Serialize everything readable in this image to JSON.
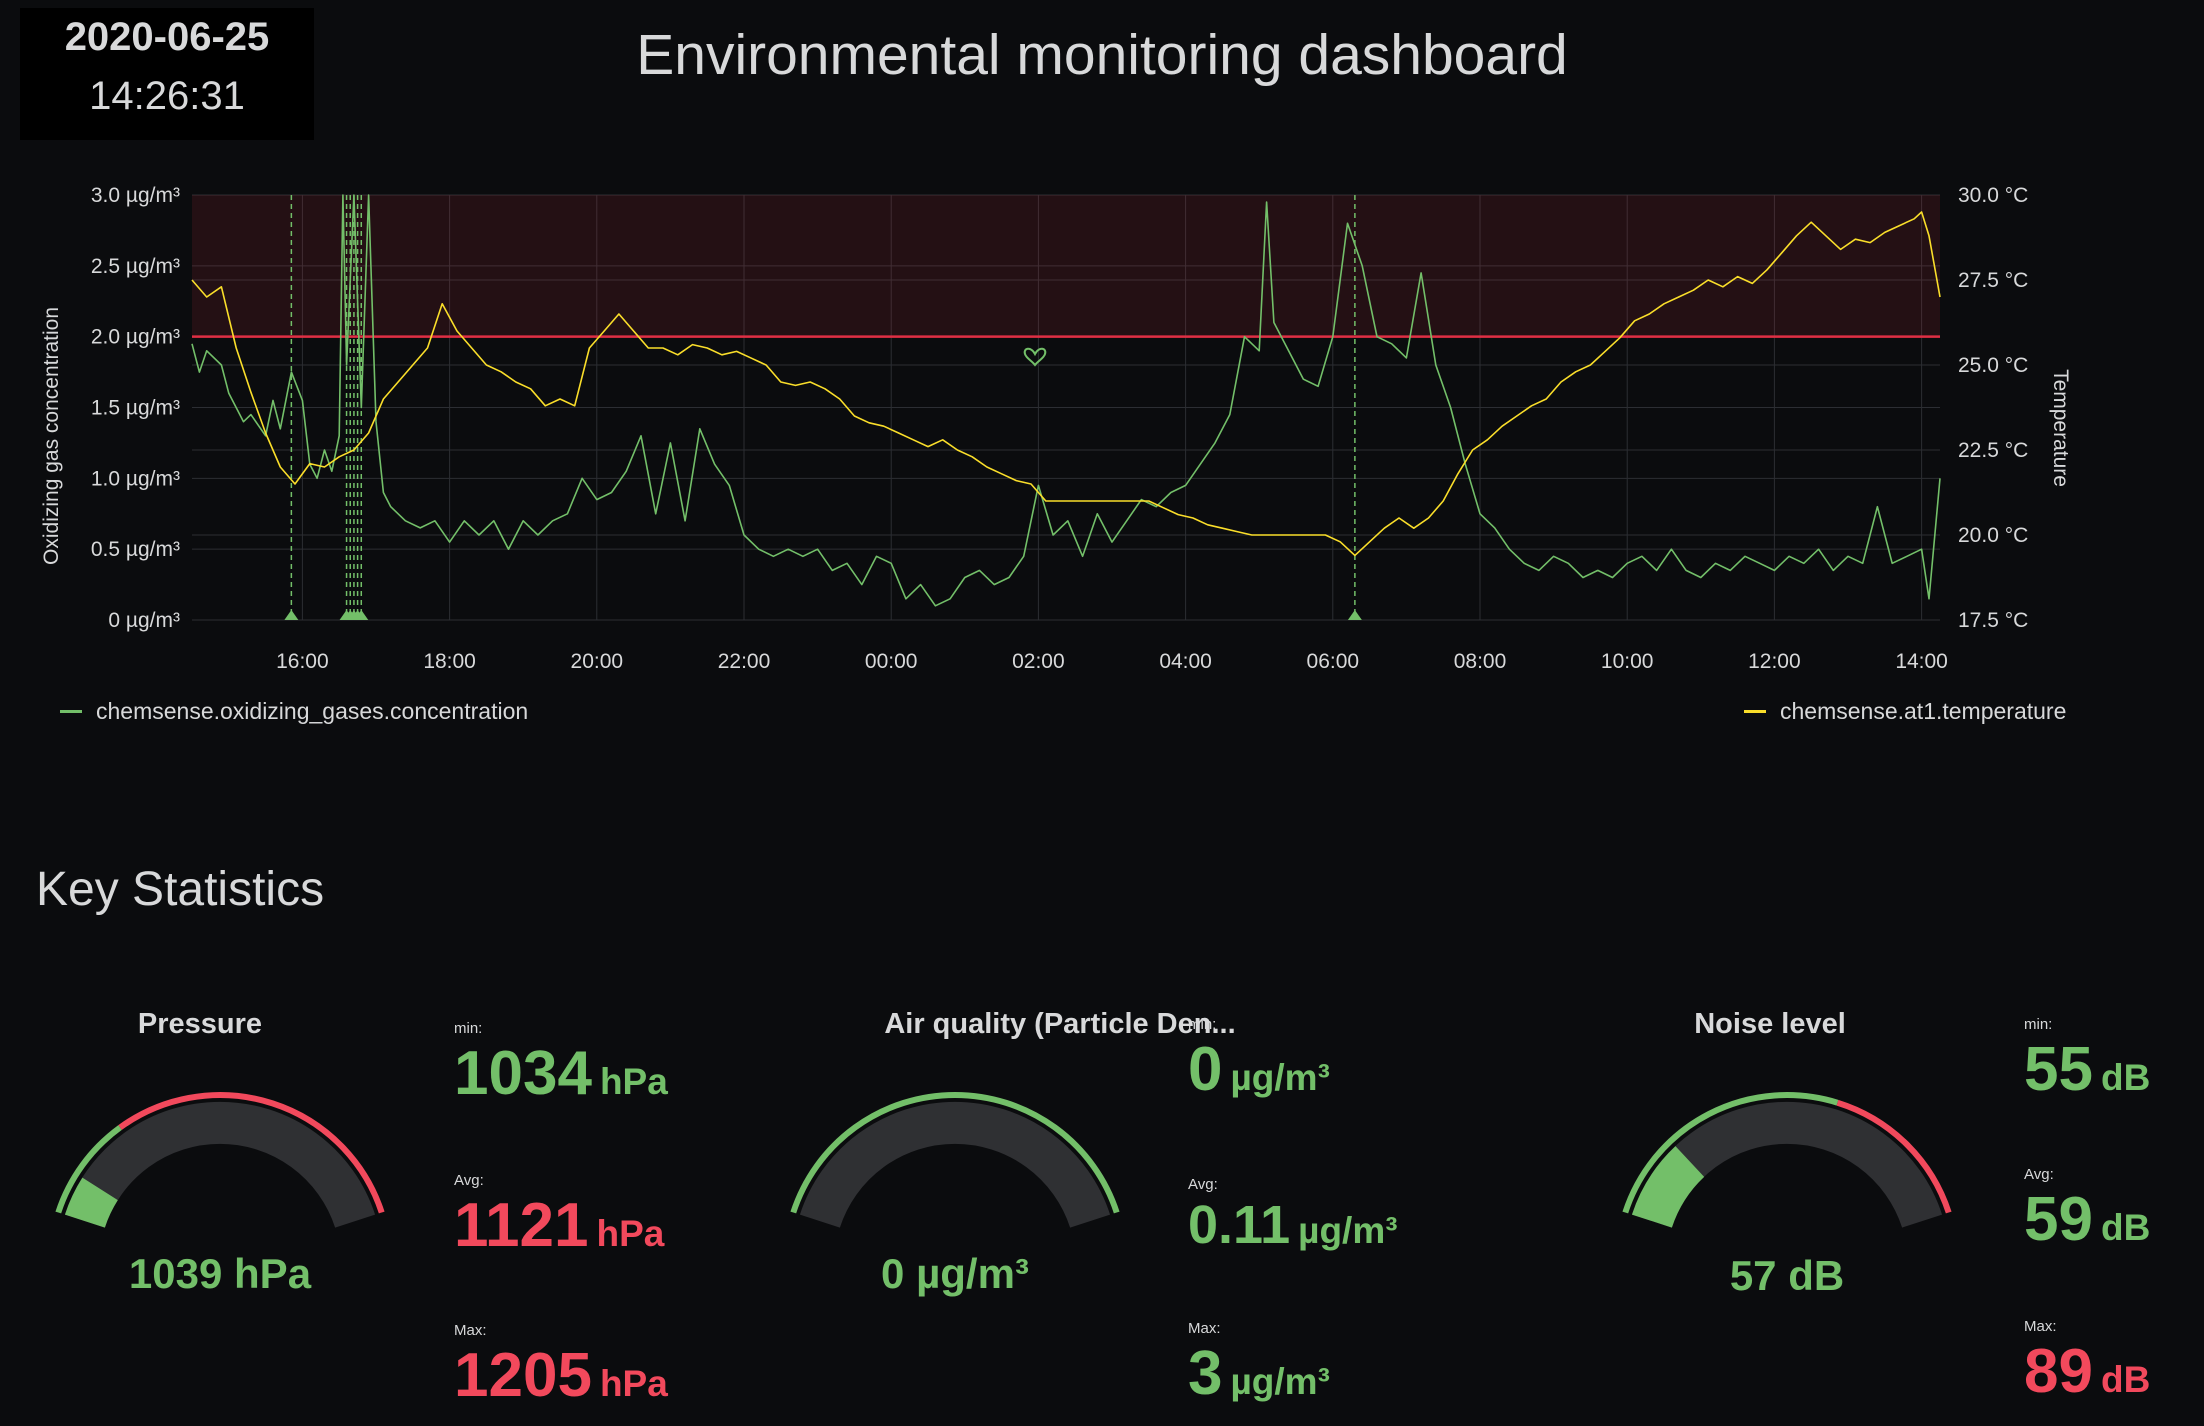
{
  "clock": {
    "date": "2020-06-25",
    "time": "14:26:31"
  },
  "title": "Environmental monitoring dashboard",
  "chart_data": {
    "type": "line",
    "x_ticks": [
      "16:00",
      "18:00",
      "20:00",
      "22:00",
      "00:00",
      "02:00",
      "04:00",
      "06:00",
      "08:00",
      "10:00",
      "12:00",
      "14:00"
    ],
    "y_left": {
      "label": "Oxidizing gas concentration",
      "ticks": [
        "0 µg/m³",
        "0.5 µg/m³",
        "1.0 µg/m³",
        "1.5 µg/m³",
        "2.0 µg/m³",
        "2.5 µg/m³",
        "3.0 µg/m³"
      ],
      "range": [
        0,
        3
      ]
    },
    "y_right": {
      "label": "Temperature",
      "ticks": [
        "17.5 °C",
        "20.0 °C",
        "22.5 °C",
        "25.0 °C",
        "27.5 °C",
        "30.0 °C"
      ],
      "range": [
        17.5,
        30
      ]
    },
    "threshold": {
      "value": 2.0,
      "color": "#e02f44"
    },
    "x_range_hours": [
      14.5,
      38.25
    ],
    "annotations_hours": [
      15.85,
      16.6,
      16.65,
      16.7,
      16.75,
      16.8,
      30.3
    ],
    "series": [
      {
        "name": "chemsense.oxidizing_gases.concentration",
        "color": "#73bf69",
        "axis": "left",
        "points": [
          [
            14.5,
            1.95
          ],
          [
            14.6,
            1.75
          ],
          [
            14.7,
            1.9
          ],
          [
            14.9,
            1.8
          ],
          [
            15.0,
            1.6
          ],
          [
            15.2,
            1.4
          ],
          [
            15.3,
            1.45
          ],
          [
            15.5,
            1.3
          ],
          [
            15.6,
            1.55
          ],
          [
            15.7,
            1.35
          ],
          [
            15.85,
            1.75
          ],
          [
            16.0,
            1.55
          ],
          [
            16.1,
            1.1
          ],
          [
            16.2,
            1.0
          ],
          [
            16.3,
            1.2
          ],
          [
            16.4,
            1.05
          ],
          [
            16.5,
            1.3
          ],
          [
            16.55,
            3.0
          ],
          [
            16.6,
            1.8
          ],
          [
            16.7,
            3.0
          ],
          [
            16.8,
            1.5
          ],
          [
            16.9,
            3.0
          ],
          [
            17.0,
            1.4
          ],
          [
            17.1,
            0.9
          ],
          [
            17.2,
            0.8
          ],
          [
            17.4,
            0.7
          ],
          [
            17.6,
            0.65
          ],
          [
            17.8,
            0.7
          ],
          [
            18.0,
            0.55
          ],
          [
            18.2,
            0.7
          ],
          [
            18.4,
            0.6
          ],
          [
            18.6,
            0.7
          ],
          [
            18.8,
            0.5
          ],
          [
            19.0,
            0.7
          ],
          [
            19.2,
            0.6
          ],
          [
            19.4,
            0.7
          ],
          [
            19.6,
            0.75
          ],
          [
            19.8,
            1.0
          ],
          [
            20.0,
            0.85
          ],
          [
            20.2,
            0.9
          ],
          [
            20.4,
            1.05
          ],
          [
            20.6,
            1.3
          ],
          [
            20.8,
            0.75
          ],
          [
            21.0,
            1.25
          ],
          [
            21.2,
            0.7
          ],
          [
            21.4,
            1.35
          ],
          [
            21.6,
            1.1
          ],
          [
            21.8,
            0.95
          ],
          [
            22.0,
            0.6
          ],
          [
            22.2,
            0.5
          ],
          [
            22.4,
            0.45
          ],
          [
            22.6,
            0.5
          ],
          [
            22.8,
            0.45
          ],
          [
            23.0,
            0.5
          ],
          [
            23.2,
            0.35
          ],
          [
            23.4,
            0.4
          ],
          [
            23.6,
            0.25
          ],
          [
            23.8,
            0.45
          ],
          [
            24.0,
            0.4
          ],
          [
            24.2,
            0.15
          ],
          [
            24.4,
            0.25
          ],
          [
            24.6,
            0.1
          ],
          [
            24.8,
            0.15
          ],
          [
            25.0,
            0.3
          ],
          [
            25.2,
            0.35
          ],
          [
            25.4,
            0.25
          ],
          [
            25.6,
            0.3
          ],
          [
            25.8,
            0.45
          ],
          [
            26.0,
            0.95
          ],
          [
            26.2,
            0.6
          ],
          [
            26.4,
            0.7
          ],
          [
            26.6,
            0.45
          ],
          [
            26.8,
            0.75
          ],
          [
            27.0,
            0.55
          ],
          [
            27.2,
            0.7
          ],
          [
            27.4,
            0.85
          ],
          [
            27.6,
            0.8
          ],
          [
            27.8,
            0.9
          ],
          [
            28.0,
            0.95
          ],
          [
            28.2,
            1.1
          ],
          [
            28.4,
            1.25
          ],
          [
            28.6,
            1.45
          ],
          [
            28.8,
            2.0
          ],
          [
            29.0,
            1.9
          ],
          [
            29.1,
            2.95
          ],
          [
            29.2,
            2.1
          ],
          [
            29.4,
            1.9
          ],
          [
            29.6,
            1.7
          ],
          [
            29.8,
            1.65
          ],
          [
            30.0,
            2.0
          ],
          [
            30.2,
            2.8
          ],
          [
            30.4,
            2.5
          ],
          [
            30.6,
            2.0
          ],
          [
            30.8,
            1.95
          ],
          [
            31.0,
            1.85
          ],
          [
            31.2,
            2.45
          ],
          [
            31.4,
            1.8
          ],
          [
            31.6,
            1.5
          ],
          [
            31.8,
            1.1
          ],
          [
            32.0,
            0.75
          ],
          [
            32.2,
            0.65
          ],
          [
            32.4,
            0.5
          ],
          [
            32.6,
            0.4
          ],
          [
            32.8,
            0.35
          ],
          [
            33.0,
            0.45
          ],
          [
            33.2,
            0.4
          ],
          [
            33.4,
            0.3
          ],
          [
            33.6,
            0.35
          ],
          [
            33.8,
            0.3
          ],
          [
            34.0,
            0.4
          ],
          [
            34.2,
            0.45
          ],
          [
            34.4,
            0.35
          ],
          [
            34.6,
            0.5
          ],
          [
            34.8,
            0.35
          ],
          [
            35.0,
            0.3
          ],
          [
            35.2,
            0.4
          ],
          [
            35.4,
            0.35
          ],
          [
            35.6,
            0.45
          ],
          [
            35.8,
            0.4
          ],
          [
            36.0,
            0.35
          ],
          [
            36.2,
            0.45
          ],
          [
            36.4,
            0.4
          ],
          [
            36.6,
            0.5
          ],
          [
            36.8,
            0.35
          ],
          [
            37.0,
            0.45
          ],
          [
            37.2,
            0.4
          ],
          [
            37.4,
            0.8
          ],
          [
            37.6,
            0.4
          ],
          [
            37.8,
            0.45
          ],
          [
            38.0,
            0.5
          ],
          [
            38.1,
            0.15
          ],
          [
            38.25,
            1.0
          ]
        ]
      },
      {
        "name": "chemsense.at1.temperature",
        "color": "#fade2a",
        "axis": "right",
        "points": [
          [
            14.5,
            27.5
          ],
          [
            14.7,
            27.0
          ],
          [
            14.9,
            27.3
          ],
          [
            15.1,
            25.5
          ],
          [
            15.3,
            24.2
          ],
          [
            15.5,
            23.0
          ],
          [
            15.7,
            22.0
          ],
          [
            15.9,
            21.5
          ],
          [
            16.1,
            22.1
          ],
          [
            16.3,
            22.0
          ],
          [
            16.5,
            22.3
          ],
          [
            16.7,
            22.5
          ],
          [
            16.9,
            23.0
          ],
          [
            17.1,
            24.0
          ],
          [
            17.3,
            24.5
          ],
          [
            17.5,
            25.0
          ],
          [
            17.7,
            25.5
          ],
          [
            17.9,
            26.8
          ],
          [
            18.1,
            26.0
          ],
          [
            18.3,
            25.5
          ],
          [
            18.5,
            25.0
          ],
          [
            18.7,
            24.8
          ],
          [
            18.9,
            24.5
          ],
          [
            19.1,
            24.3
          ],
          [
            19.3,
            23.8
          ],
          [
            19.5,
            24.0
          ],
          [
            19.7,
            23.8
          ],
          [
            19.9,
            25.5
          ],
          [
            20.1,
            26.0
          ],
          [
            20.3,
            26.5
          ],
          [
            20.5,
            26.0
          ],
          [
            20.7,
            25.5
          ],
          [
            20.9,
            25.5
          ],
          [
            21.1,
            25.3
          ],
          [
            21.3,
            25.6
          ],
          [
            21.5,
            25.5
          ],
          [
            21.7,
            25.3
          ],
          [
            21.9,
            25.4
          ],
          [
            22.1,
            25.2
          ],
          [
            22.3,
            25.0
          ],
          [
            22.5,
            24.5
          ],
          [
            22.7,
            24.4
          ],
          [
            22.9,
            24.5
          ],
          [
            23.1,
            24.3
          ],
          [
            23.3,
            24.0
          ],
          [
            23.5,
            23.5
          ],
          [
            23.7,
            23.3
          ],
          [
            23.9,
            23.2
          ],
          [
            24.1,
            23.0
          ],
          [
            24.3,
            22.8
          ],
          [
            24.5,
            22.6
          ],
          [
            24.7,
            22.8
          ],
          [
            24.9,
            22.5
          ],
          [
            25.1,
            22.3
          ],
          [
            25.3,
            22.0
          ],
          [
            25.5,
            21.8
          ],
          [
            25.7,
            21.6
          ],
          [
            25.9,
            21.5
          ],
          [
            26.1,
            21.0
          ],
          [
            26.3,
            21.0
          ],
          [
            26.5,
            21.0
          ],
          [
            26.7,
            21.0
          ],
          [
            26.9,
            21.0
          ],
          [
            27.1,
            21.0
          ],
          [
            27.3,
            21.0
          ],
          [
            27.5,
            21.0
          ],
          [
            27.7,
            20.8
          ],
          [
            27.9,
            20.6
          ],
          [
            28.1,
            20.5
          ],
          [
            28.3,
            20.3
          ],
          [
            28.5,
            20.2
          ],
          [
            28.7,
            20.1
          ],
          [
            28.9,
            20.0
          ],
          [
            29.1,
            20.0
          ],
          [
            29.3,
            20.0
          ],
          [
            29.5,
            20.0
          ],
          [
            29.7,
            20.0
          ],
          [
            29.9,
            20.0
          ],
          [
            30.1,
            19.8
          ],
          [
            30.3,
            19.4
          ],
          [
            30.5,
            19.8
          ],
          [
            30.7,
            20.2
          ],
          [
            30.9,
            20.5
          ],
          [
            31.1,
            20.2
          ],
          [
            31.3,
            20.5
          ],
          [
            31.5,
            21.0
          ],
          [
            31.7,
            21.8
          ],
          [
            31.9,
            22.5
          ],
          [
            32.1,
            22.8
          ],
          [
            32.3,
            23.2
          ],
          [
            32.5,
            23.5
          ],
          [
            32.7,
            23.8
          ],
          [
            32.9,
            24.0
          ],
          [
            33.1,
            24.5
          ],
          [
            33.3,
            24.8
          ],
          [
            33.5,
            25.0
          ],
          [
            33.7,
            25.4
          ],
          [
            33.9,
            25.8
          ],
          [
            34.1,
            26.3
          ],
          [
            34.3,
            26.5
          ],
          [
            34.5,
            26.8
          ],
          [
            34.7,
            27.0
          ],
          [
            34.9,
            27.2
          ],
          [
            35.1,
            27.5
          ],
          [
            35.3,
            27.3
          ],
          [
            35.5,
            27.6
          ],
          [
            35.7,
            27.4
          ],
          [
            35.9,
            27.8
          ],
          [
            36.1,
            28.3
          ],
          [
            36.3,
            28.8
          ],
          [
            36.5,
            29.2
          ],
          [
            36.7,
            28.8
          ],
          [
            36.9,
            28.4
          ],
          [
            37.1,
            28.7
          ],
          [
            37.3,
            28.6
          ],
          [
            37.5,
            28.9
          ],
          [
            37.7,
            29.1
          ],
          [
            37.9,
            29.3
          ],
          [
            38.0,
            29.5
          ],
          [
            38.1,
            28.8
          ],
          [
            38.25,
            27.0
          ]
        ]
      }
    ]
  },
  "section": {
    "title": "Key Statistics"
  },
  "panels": {
    "pressure": {
      "title": "Pressure",
      "gauge_value": "1039 hPa",
      "gauge_fill": 0.1,
      "min_label": "min:",
      "min": "1034",
      "min_unit": "hPa",
      "avg_label": "Avg:",
      "avg": "1121",
      "avg_unit": "hPa",
      "max_label": "Max:",
      "max": "1205",
      "max_unit": "hPa"
    },
    "air": {
      "title": "Air quality (Particle Den...",
      "gauge_value": "0 µg/m³",
      "gauge_fill": 0,
      "min_label": "min:",
      "min": "0",
      "min_unit": "µg/m³",
      "avg_label": "Avg:",
      "avg": "0.11",
      "avg_unit": "µg/m³",
      "max_label": "Max:",
      "max": "3",
      "max_unit": "µg/m³"
    },
    "noise": {
      "title": "Noise level",
      "gauge_value": "57 dB",
      "gauge_fill": 0.2,
      "min_label": "min:",
      "min": "55",
      "min_unit": "dB",
      "avg_label": "Avg:",
      "avg": "59",
      "avg_unit": "dB",
      "max_label": "Max:",
      "max": "89",
      "max_unit": "dB"
    }
  },
  "colors": {
    "green": "#73bf69",
    "red": "#f2495c",
    "yellow": "#fade2a",
    "threshold": "#e02f44"
  }
}
